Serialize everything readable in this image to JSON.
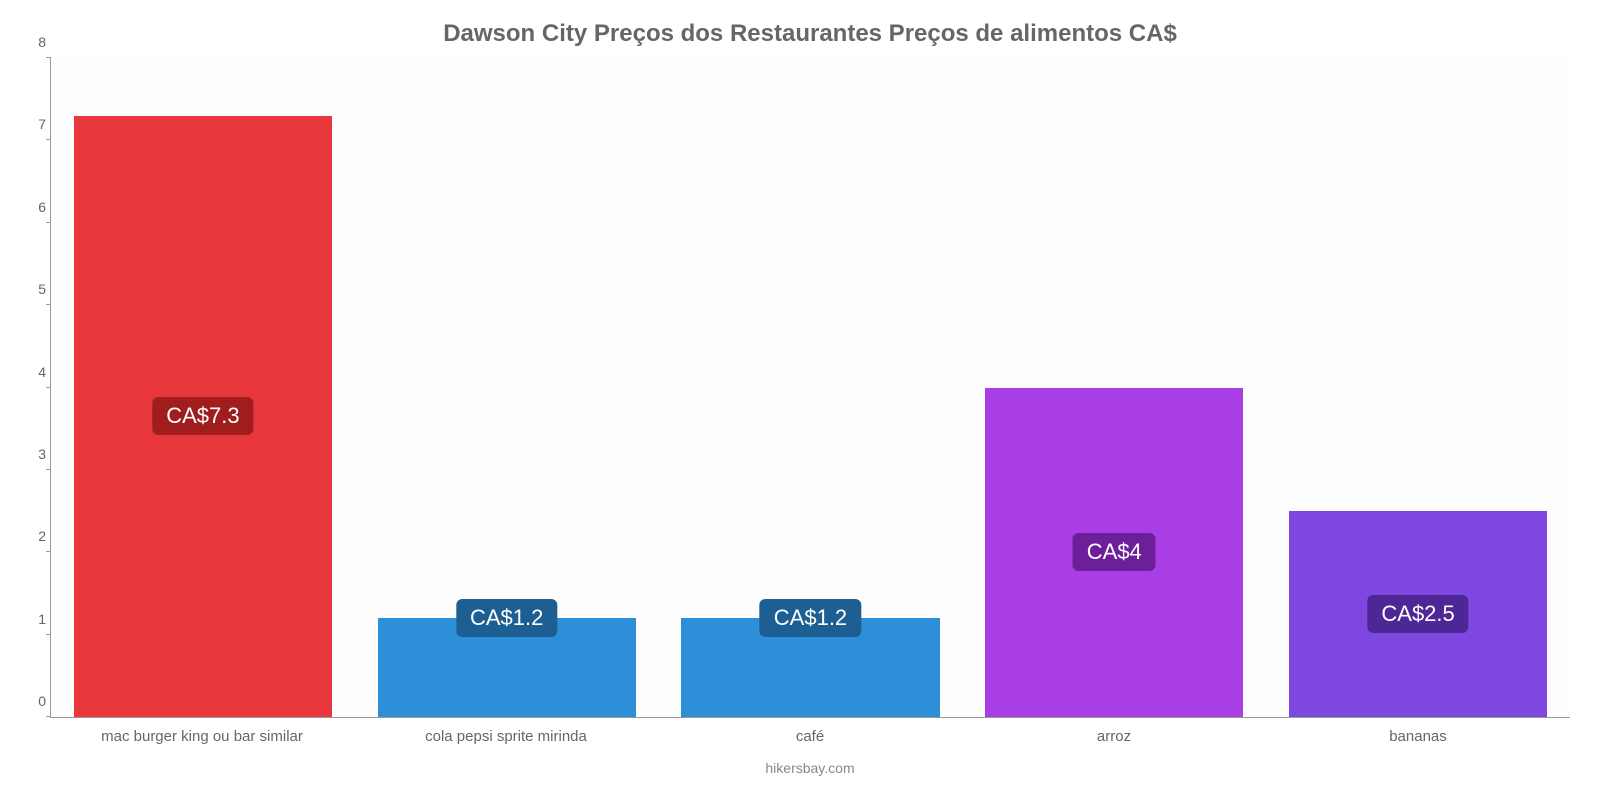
{
  "chart": {
    "type": "bar",
    "title": "Dawson City Preços dos Restaurantes Preços de alimentos CA$",
    "title_fontsize": 24,
    "title_color": "#666666",
    "footer": "hikersbay.com",
    "background_color": "#ffffff",
    "plot_background": "#fdfdfd",
    "axis_color": "#999999",
    "tick_label_color": "#666666",
    "tick_label_fontsize": 14,
    "x_label_fontsize": 15,
    "ylim": [
      0,
      8
    ],
    "ytick_step": 1,
    "bar_width_pct": 85,
    "label_fontsize": 22,
    "label_text_color": "#ffffff",
    "categories": [
      "mac burger king ou bar similar",
      "cola pepsi sprite mirinda",
      "café",
      "arroz",
      "bananas"
    ],
    "values": [
      7.3,
      1.2,
      1.2,
      4,
      2.5
    ],
    "display_labels": [
      "CA$7.3",
      "CA$1.2",
      "CA$1.2",
      "CA$4",
      "CA$2.5"
    ],
    "bar_colors": [
      "#e8373c",
      "#2d8fd8",
      "#2d8fd8",
      "#aa3ee6",
      "#7d47e0"
    ],
    "label_bg_colors": [
      "#a01d1d",
      "#1d5f93",
      "#1d5f93",
      "#6d1f99",
      "#4e2796"
    ],
    "label_low_threshold": 1.8
  }
}
